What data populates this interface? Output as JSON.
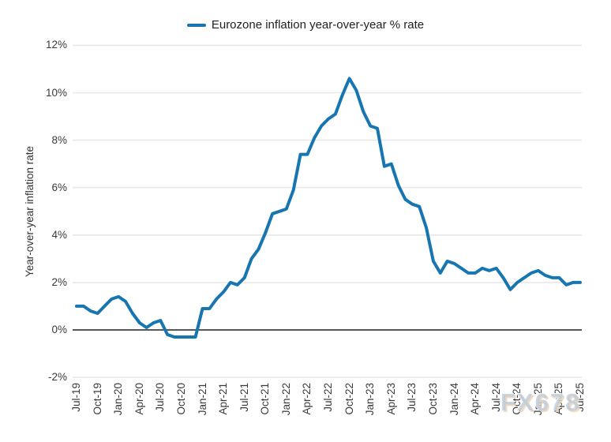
{
  "legend": {
    "label": "Eurozone inflation year-over-year % rate"
  },
  "watermark": "FX678",
  "chart_data": {
    "type": "line",
    "title": "",
    "ylabel": "Year-over-year inflation rate",
    "xlabel": "",
    "ylim": [
      -2,
      12
    ],
    "grid": "horizontal",
    "legend_position": "top-center",
    "line_color": "#1776b0",
    "grid_color": "#e8e8e8",
    "zero_line_color": "#56575b",
    "y_tick_labels": [
      "12%",
      "10%",
      "8%",
      "6%",
      "4%",
      "2%",
      "0%",
      "-2%"
    ],
    "y_tick_values": [
      12,
      10,
      8,
      6,
      4,
      2,
      0,
      -2
    ],
    "x_tick_labels": [
      "Jul-19",
      "Oct-19",
      "Jan-20",
      "Apr-20",
      "Jul-20",
      "Oct-20",
      "Jan-21",
      "Apr-21",
      "Jul-21",
      "Oct-21",
      "Jan-22",
      "Apr-22",
      "Jul-22",
      "Oct-22",
      "Jan-23",
      "Apr-23",
      "Jul-23",
      "Oct-23",
      "Jan-24",
      "Apr-24",
      "Jul-24",
      "Oct-24",
      "Jan-25",
      "Apr-25",
      "Jul-25"
    ],
    "x_tick_every_n_months": 3,
    "series": [
      {
        "name": "Eurozone inflation year-over-year % rate",
        "months": [
          "Jul-19",
          "Aug-19",
          "Sep-19",
          "Oct-19",
          "Nov-19",
          "Dec-19",
          "Jan-20",
          "Feb-20",
          "Mar-20",
          "Apr-20",
          "May-20",
          "Jun-20",
          "Jul-20",
          "Aug-20",
          "Sep-20",
          "Oct-20",
          "Nov-20",
          "Dec-20",
          "Jan-21",
          "Feb-21",
          "Mar-21",
          "Apr-21",
          "May-21",
          "Jun-21",
          "Jul-21",
          "Aug-21",
          "Sep-21",
          "Oct-21",
          "Nov-21",
          "Dec-21",
          "Jan-22",
          "Feb-22",
          "Mar-22",
          "Apr-22",
          "May-22",
          "Jun-22",
          "Jul-22",
          "Aug-22",
          "Sep-22",
          "Oct-22",
          "Nov-22",
          "Dec-22",
          "Jan-23",
          "Feb-23",
          "Mar-23",
          "Apr-23",
          "May-23",
          "Jun-23",
          "Jul-23",
          "Aug-23",
          "Sep-23",
          "Oct-23",
          "Nov-23",
          "Dec-23",
          "Jan-24",
          "Feb-24",
          "Mar-24",
          "Apr-24",
          "May-24",
          "Jun-24",
          "Jul-24",
          "Aug-24",
          "Sep-24",
          "Oct-24",
          "Nov-24",
          "Dec-24",
          "Jan-25",
          "Feb-25",
          "Mar-25",
          "Apr-25",
          "May-25",
          "Jun-25",
          "Jul-25"
        ],
        "values": [
          1.0,
          1.0,
          0.8,
          0.7,
          1.0,
          1.3,
          1.4,
          1.2,
          0.7,
          0.3,
          0.1,
          0.3,
          0.4,
          -0.2,
          -0.3,
          -0.3,
          -0.3,
          -0.3,
          0.9,
          0.9,
          1.3,
          1.6,
          2.0,
          1.9,
          2.2,
          3.0,
          3.4,
          4.1,
          4.9,
          5.0,
          5.1,
          5.9,
          7.4,
          7.4,
          8.1,
          8.6,
          8.9,
          9.1,
          9.9,
          10.6,
          10.1,
          9.2,
          8.6,
          8.5,
          6.9,
          7.0,
          6.1,
          5.5,
          5.3,
          5.2,
          4.3,
          2.9,
          2.4,
          2.9,
          2.8,
          2.6,
          2.4,
          2.4,
          2.6,
          2.5,
          2.6,
          2.2,
          1.7,
          2.0,
          2.2,
          2.4,
          2.5,
          2.3,
          2.2,
          2.2,
          1.9,
          2.0,
          2.0
        ]
      }
    ]
  }
}
